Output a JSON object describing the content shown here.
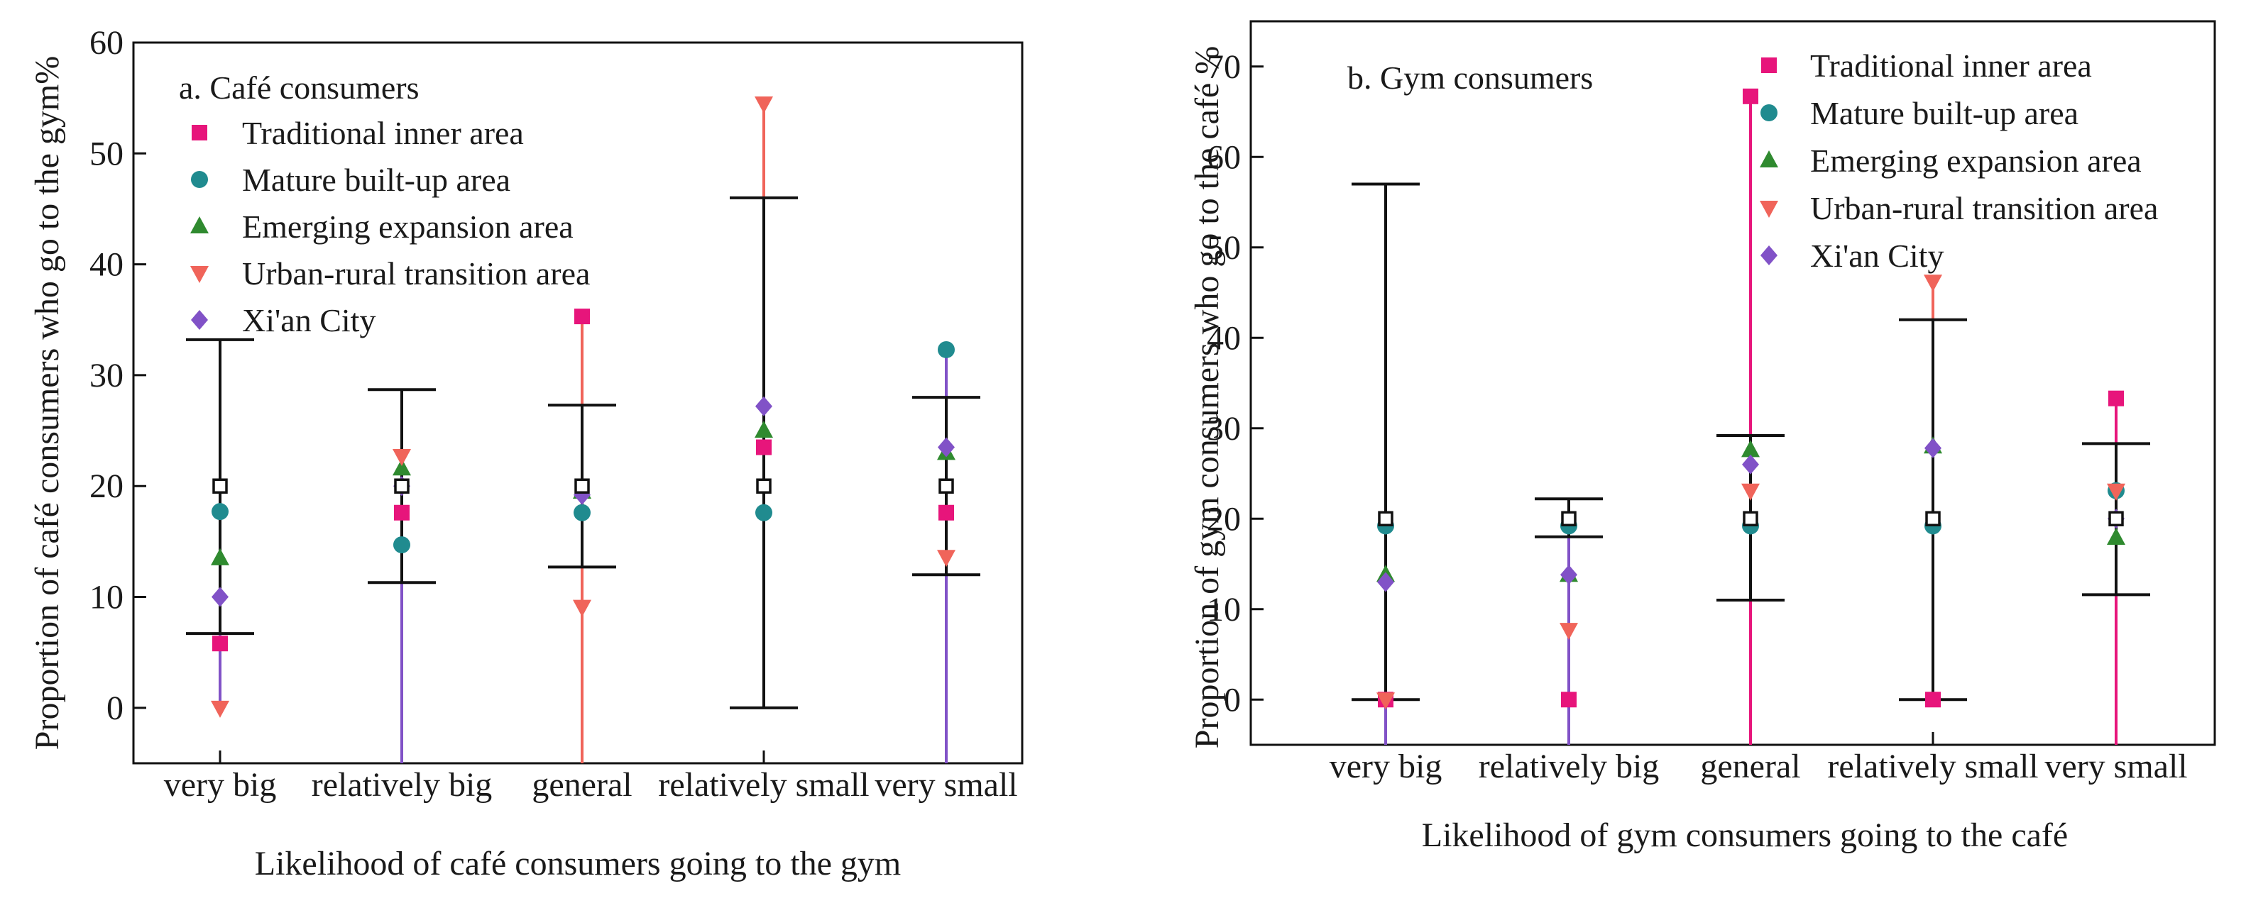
{
  "colors": {
    "traditional": "#e7157b",
    "mature": "#208b8f",
    "emerging": "#2f8a2f",
    "urban": "#f0645a",
    "xian": "#8152c7",
    "errorbar": "#111111",
    "mean_marker_edge": "#111111"
  },
  "chart_data": [
    {
      "type": "scatter",
      "title": "a.  Café consumers",
      "xlabel": "Likelihood of café consumers going to the gym",
      "ylabel": "Proportion of café consumers who go to the gym%",
      "categories": [
        "very big",
        "relatively big",
        "general",
        "relatively small",
        "very small"
      ],
      "ylim": [
        -5,
        60
      ],
      "yticks": [
        0,
        10,
        20,
        30,
        40,
        50,
        60
      ],
      "series": [
        {
          "name": "Traditional inner area",
          "marker": "square",
          "color_key": "traditional",
          "values": [
            5.8,
            17.6,
            35.3,
            23.5,
            17.6
          ]
        },
        {
          "name": "Mature built-up area",
          "marker": "circle",
          "color_key": "mature",
          "values": [
            17.7,
            14.7,
            17.6,
            17.6,
            32.3
          ]
        },
        {
          "name": "Emerging expansion area",
          "marker": "triangle-up",
          "color_key": "emerging",
          "values": [
            13.5,
            21.6,
            19.5,
            25.0,
            23.0
          ]
        },
        {
          "name": "Urban-rural transition area",
          "marker": "triangle-down",
          "color_key": "urban",
          "values": [
            0,
            22.7,
            9.1,
            54.5,
            13.6
          ]
        },
        {
          "name": "Xi'an City",
          "marker": "diamond",
          "color_key": "xian",
          "values": [
            10.0,
            20.0,
            19.2,
            27.2,
            23.5
          ]
        }
      ],
      "mean": [
        20,
        20,
        20,
        20,
        20
      ],
      "error_low": [
        6.7,
        11.3,
        12.7,
        0,
        12.0
      ],
      "error_high": [
        33.2,
        28.7,
        27.3,
        46.0,
        28.0
      ],
      "lines": [
        {
          "index": 0,
          "from": 0,
          "to": 17.7,
          "color_key": "xian"
        },
        {
          "index": 1,
          "from": -5,
          "to": 22.7,
          "color_key": "xian"
        },
        {
          "index": 2,
          "from": -5,
          "to": 35.3,
          "color_key": "urban"
        },
        {
          "index": 3,
          "from": 46.0,
          "to": 54.5,
          "color_key": "urban"
        },
        {
          "index": 4,
          "from": -5,
          "to": 32.3,
          "color_key": "xian"
        }
      ]
    },
    {
      "type": "scatter",
      "title": "b. Gym consumers",
      "xlabel": "Likelihood of gym consumers going to the café",
      "ylabel": "Proportion of gym consumers who go to the café %",
      "categories": [
        "very big",
        "relatively big",
        "general",
        "relatively small",
        "very small"
      ],
      "ylim": [
        -5,
        75
      ],
      "yticks": [
        0,
        10,
        20,
        30,
        40,
        50,
        60,
        70
      ],
      "series": [
        {
          "name": "Traditional inner area",
          "marker": "square",
          "color_key": "traditional",
          "values": [
            0,
            0,
            66.7,
            0,
            33.3
          ]
        },
        {
          "name": "Mature built-up area",
          "marker": "circle",
          "color_key": "mature",
          "values": [
            19.2,
            19.2,
            19.2,
            19.2,
            23.1
          ]
        },
        {
          "name": "Emerging expansion area",
          "marker": "triangle-up",
          "color_key": "emerging",
          "values": [
            13.8,
            13.8,
            27.6,
            28.0,
            17.9
          ]
        },
        {
          "name": "Urban-rural transition area",
          "marker": "triangle-down",
          "color_key": "urban",
          "values": [
            0,
            7.7,
            23.1,
            46.2,
            23.1
          ]
        },
        {
          "name": "Xi'an City",
          "marker": "diamond",
          "color_key": "xian",
          "values": [
            13.0,
            13.8,
            26.0,
            27.8,
            20.0
          ]
        }
      ],
      "mean": [
        20,
        20,
        20,
        20,
        20
      ],
      "error_low": [
        0,
        18.0,
        11.0,
        0,
        11.6
      ],
      "error_high": [
        57.0,
        22.2,
        29.2,
        42.0,
        28.3
      ],
      "lines": [
        {
          "index": 0,
          "from": -5,
          "to": 19.2,
          "color_key": "xian"
        },
        {
          "index": 1,
          "from": -5,
          "to": 19.2,
          "color_key": "xian"
        },
        {
          "index": 2,
          "from": -5,
          "to": 66.7,
          "color_key": "traditional"
        },
        {
          "index": 3,
          "from": 42.0,
          "to": 46.2,
          "color_key": "urban"
        },
        {
          "index": 4,
          "from": -5,
          "to": 33.3,
          "color_key": "traditional"
        }
      ]
    }
  ]
}
